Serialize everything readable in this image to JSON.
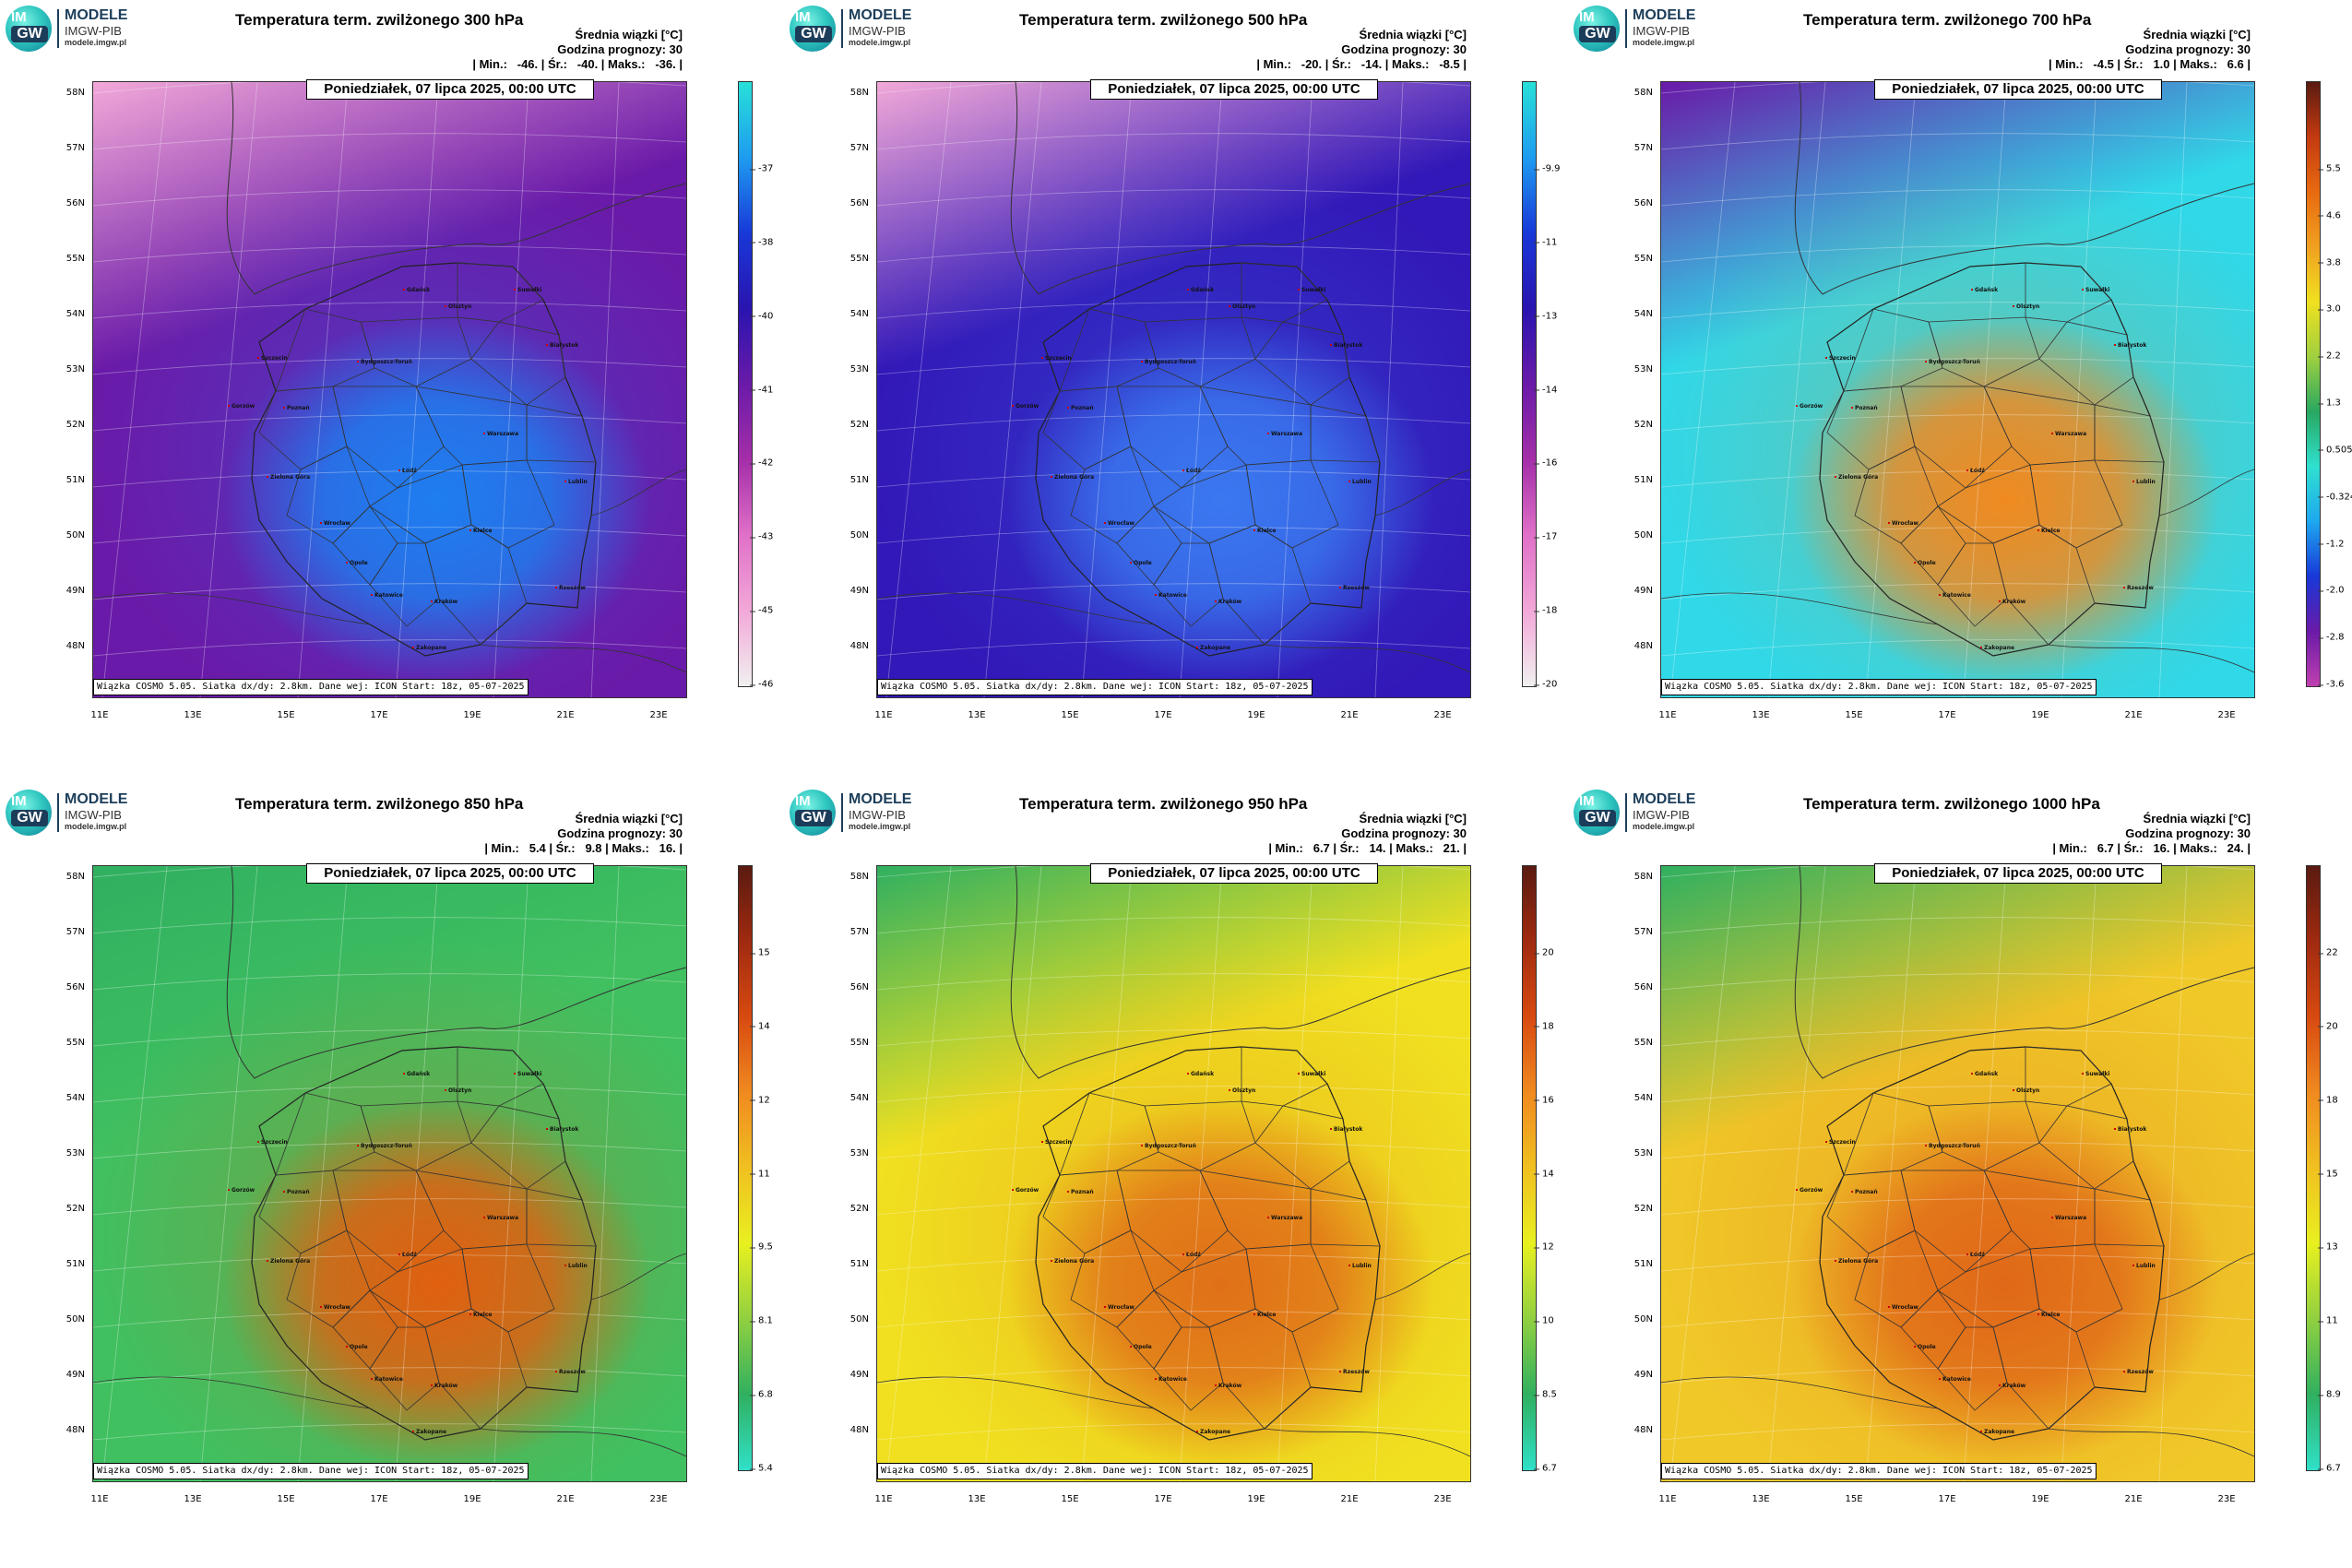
{
  "logo": {
    "im": "IM",
    "gw": "GW",
    "brand": "MODELE",
    "org": "IMGW-PIB",
    "site": "modele.imgw.pl"
  },
  "common": {
    "subtitle": "Średnia wiązki [°C]",
    "forecast": "Godzina prognozy: 30",
    "date": "Poniedziałek, 07 lipca 2025, 00:00 UTC",
    "footer": "Wiązka COSMO 5.05. Siatka dx/dy: 2.8km. Dane wej: ICON Start: 18z, 05-07-2025",
    "lat_labels": [
      "58N",
      "57N",
      "56N",
      "55N",
      "54N",
      "53N",
      "52N",
      "51N",
      "50N",
      "49N",
      "48N"
    ],
    "lon_labels": [
      "11E",
      "13E",
      "15E",
      "17E",
      "19E",
      "21E",
      "23E"
    ],
    "cities": [
      "Gdańsk",
      "Suwałki",
      "Olsztyn",
      "Szczecin",
      "Białystok",
      "Bydgoszcz-Toruń",
      "Gorzów",
      "Poznań",
      "Warszawa",
      "Zielona Góra",
      "Łódź",
      "Lublin",
      "Wrocław",
      "Kielce",
      "Opole",
      "Katowice",
      "Kraków",
      "Rzeszów",
      "Zakopane"
    ]
  },
  "panels": [
    {
      "title": "Temperatura term. zwilżonego 300 hPa",
      "stats": "| Min.:   -46. | Śr.:   -40. | Maks.:   -36. |",
      "min": -46,
      "mean": -40,
      "max": -36,
      "colorbar_ticks": [
        "-37",
        "-38",
        "-40",
        "-41",
        "-42",
        "-43",
        "-45",
        "-46"
      ],
      "colorbar": [
        "#27e0d8",
        "#1e9cf0",
        "#1838d8",
        "#2a14b0",
        "#6a1aa8",
        "#a42ea8",
        "#e070c8",
        "#f2a8d8",
        "#f0f0f0"
      ],
      "field_base": "#6a1aa8",
      "field_hot": "#1e7ef0"
    },
    {
      "title": "Temperatura term. zwilżonego 500 hPa",
      "stats": "| Min.:   -20. | Śr.:   -14. | Maks.:   -8.5 |",
      "min": -20,
      "mean": -14,
      "max": -8.5,
      "colorbar_ticks": [
        "-9.9",
        "-11",
        "-13",
        "-14",
        "-16",
        "-17",
        "-18",
        "-20"
      ],
      "colorbar": [
        "#27e0d8",
        "#1e9cf0",
        "#1838d8",
        "#2a14b0",
        "#6a1aa8",
        "#a42ea8",
        "#e070c8",
        "#f2a8d8",
        "#f0f0f0"
      ],
      "field_base": "#3218b8",
      "field_hot": "#3a78f0"
    },
    {
      "title": "Temperatura term. zwilżonego 700 hPa",
      "stats": "| Min.:   -4.5 | Śr.:   1.0 | Maks.:   6.6 |",
      "min": -4.5,
      "mean": 1.0,
      "max": 6.6,
      "colorbar_ticks": [
        "5.5",
        "4.6",
        "3.8",
        "3.0",
        "2.2",
        "1.3",
        "0.505",
        "-0.324",
        "-1.2",
        "-2.0",
        "-2.8",
        "-3.6"
      ],
      "colorbar": [
        "#5a1a10",
        "#c43a10",
        "#e86a10",
        "#f0a020",
        "#f0e020",
        "#a0d040",
        "#28a860",
        "#30e0d0",
        "#1ea8f0",
        "#1838d8",
        "#6a1aa8",
        "#c040b0"
      ],
      "field_base": "#30d8e8",
      "field_hot": "#f08a20"
    },
    {
      "title": "Temperatura term. zwilżonego 850 hPa",
      "stats": "| Min.:   5.4 | Śr.:   9.8 | Maks.:   16. |",
      "min": 5.4,
      "mean": 9.8,
      "max": 16,
      "colorbar_ticks": [
        "15",
        "14",
        "12",
        "11",
        "9.5",
        "8.1",
        "6.8",
        "5.4"
      ],
      "colorbar": [
        "#5a1a10",
        "#a02a10",
        "#d84a10",
        "#f08a20",
        "#f0c020",
        "#e8f020",
        "#90d040",
        "#30b060",
        "#30e0c8"
      ],
      "field_base": "#40c060",
      "field_hot": "#e06010"
    },
    {
      "title": "Temperatura term. zwilżonego 950 hPa",
      "stats": "| Min.:   6.7 | Śr.:   14. | Maks.:   21. |",
      "min": 6.7,
      "mean": 14,
      "max": 21,
      "colorbar_ticks": [
        "20",
        "18",
        "16",
        "14",
        "12",
        "10",
        "8.5",
        "6.7"
      ],
      "colorbar": [
        "#5a1a10",
        "#a02a10",
        "#d84a10",
        "#f08a20",
        "#f0c020",
        "#e8f020",
        "#90d040",
        "#30b060",
        "#30e0c8"
      ],
      "field_base": "#f0e020",
      "field_hot": "#e07018"
    },
    {
      "title": "Temperatura term. zwilżonego 1000 hPa",
      "stats": "| Min.:   6.7 | Śr.:   16. | Maks.:   24. |",
      "min": 6.7,
      "mean": 16,
      "max": 24,
      "colorbar_ticks": [
        "22",
        "20",
        "18",
        "15",
        "13",
        "11",
        "8.9",
        "6.7"
      ],
      "colorbar": [
        "#5a1a10",
        "#a02a10",
        "#d84a10",
        "#f08a20",
        "#f0c020",
        "#e8f020",
        "#90d040",
        "#30b060",
        "#30e0c8"
      ],
      "field_base": "#f0c828",
      "field_hot": "#e06818"
    }
  ]
}
